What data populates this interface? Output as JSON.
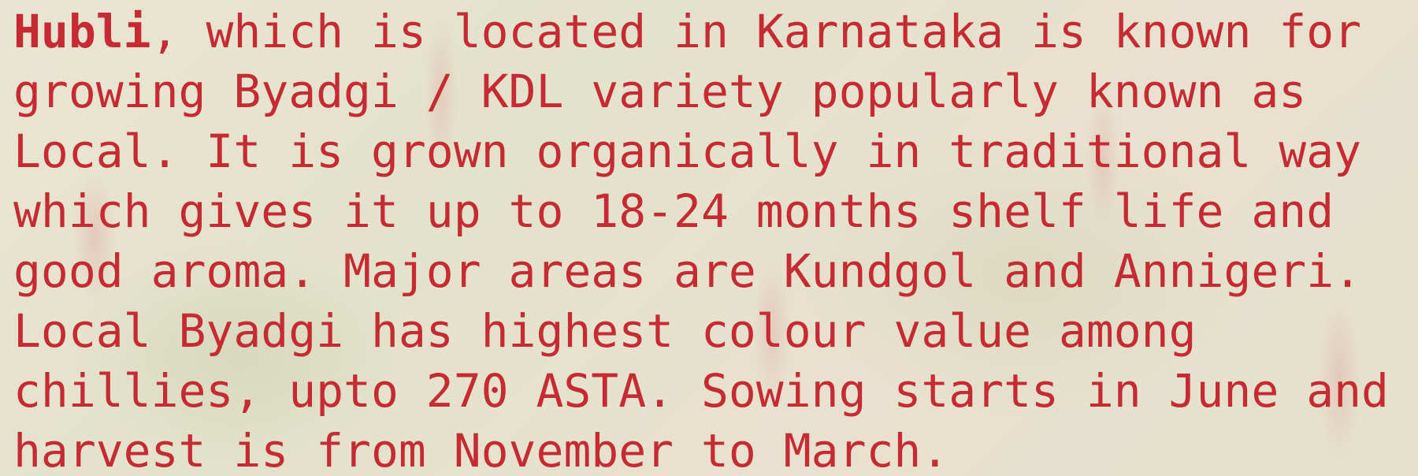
{
  "paragraph": {
    "lead": "Hubli",
    "lines": [
      ", which is located in Karnataka is known for",
      "growing Byadgi / KDL variety popularly known as",
      "Local. It is grown organically in traditional way",
      "which gives it up to 18-24 months shelf life and",
      "good aroma. Major areas are Kundgol and Annigeri.",
      "Local Byadgi has highest colour value among",
      "chillies, upto 270 ASTA. Sowing starts in June and",
      "harvest is from November to March."
    ]
  }
}
